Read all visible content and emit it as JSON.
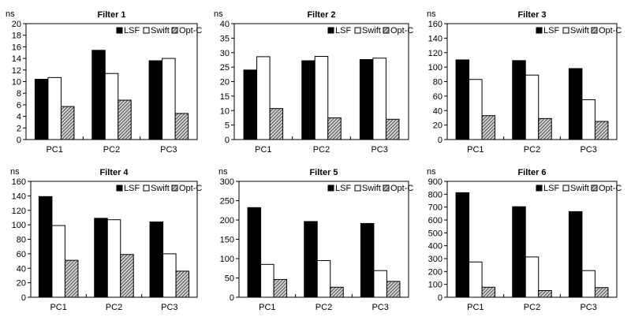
{
  "colors": {
    "LSF": "#000000",
    "Swift": "#ffffff",
    "Opt-C": "#888888"
  },
  "chart_data": [
    {
      "type": "bar",
      "title": "Filter 1",
      "ylabel": "ns",
      "xlabel": "",
      "categories": [
        "PC1",
        "PC2",
        "PC3"
      ],
      "ylim": [
        0,
        20
      ],
      "yticks": [
        0,
        2,
        4,
        6,
        8,
        10,
        12,
        14,
        16,
        18,
        20
      ],
      "legend": "top-right",
      "series": [
        {
          "name": "LSF",
          "values": [
            10.4,
            15.4,
            13.6
          ]
        },
        {
          "name": "Swift",
          "values": [
            10.7,
            11.4,
            14.0
          ]
        },
        {
          "name": "Opt-C",
          "values": [
            5.7,
            6.8,
            4.5
          ]
        }
      ]
    },
    {
      "type": "bar",
      "title": "Filter 2",
      "ylabel": "ns",
      "xlabel": "",
      "categories": [
        "PC1",
        "PC2",
        "PC3"
      ],
      "ylim": [
        0,
        40
      ],
      "yticks": [
        0,
        5,
        10,
        15,
        20,
        25,
        30,
        35,
        40
      ],
      "legend": "top-right",
      "series": [
        {
          "name": "LSF",
          "values": [
            24.0,
            27.2,
            27.6
          ]
        },
        {
          "name": "Swift",
          "values": [
            28.6,
            28.7,
            28.1
          ]
        },
        {
          "name": "Opt-C",
          "values": [
            10.7,
            7.5,
            7.0
          ]
        }
      ]
    },
    {
      "type": "bar",
      "title": "Filter 3",
      "ylabel": "ns",
      "xlabel": "",
      "categories": [
        "PC1",
        "PC2",
        "PC3"
      ],
      "ylim": [
        0,
        160
      ],
      "yticks": [
        0,
        20,
        40,
        60,
        80,
        100,
        120,
        140,
        160
      ],
      "legend": "top-right",
      "series": [
        {
          "name": "LSF",
          "values": [
            110,
            109,
            98
          ]
        },
        {
          "name": "Swift",
          "values": [
            83,
            89,
            55
          ]
        },
        {
          "name": "Opt-C",
          "values": [
            33,
            29,
            25
          ]
        }
      ]
    },
    {
      "type": "bar",
      "title": "Filter 4",
      "ylabel": "ns",
      "xlabel": "",
      "categories": [
        "PC1",
        "PC2",
        "PC3"
      ],
      "ylim": [
        0,
        160
      ],
      "yticks": [
        0,
        20,
        40,
        60,
        80,
        100,
        120,
        140,
        160
      ],
      "legend": "top-right",
      "series": [
        {
          "name": "LSF",
          "values": [
            139,
            109,
            104
          ]
        },
        {
          "name": "Swift",
          "values": [
            99,
            107,
            60
          ]
        },
        {
          "name": "Opt-C",
          "values": [
            51,
            59,
            36
          ]
        }
      ]
    },
    {
      "type": "bar",
      "title": "Filter 5",
      "ylabel": "ns",
      "xlabel": "",
      "categories": [
        "PC1",
        "PC2",
        "PC3"
      ],
      "ylim": [
        0,
        300
      ],
      "yticks": [
        0,
        50,
        100,
        150,
        200,
        250,
        300
      ],
      "legend": "top-right",
      "series": [
        {
          "name": "LSF",
          "values": [
            232,
            196,
            191
          ]
        },
        {
          "name": "Swift",
          "values": [
            85,
            95,
            69
          ]
        },
        {
          "name": "Opt-C",
          "values": [
            46,
            26,
            41
          ]
        }
      ]
    },
    {
      "type": "bar",
      "title": "Filter 6",
      "ylabel": "ns",
      "xlabel": "",
      "categories": [
        "PC1",
        "PC2",
        "PC3"
      ],
      "ylim": [
        0,
        900
      ],
      "yticks": [
        0,
        100,
        200,
        300,
        400,
        500,
        600,
        700,
        800,
        900
      ],
      "legend": "top-right",
      "series": [
        {
          "name": "LSF",
          "values": [
            812,
            703,
            665
          ]
        },
        {
          "name": "Swift",
          "values": [
            274,
            313,
            207
          ]
        },
        {
          "name": "Opt-C",
          "values": [
            78,
            52,
            75
          ]
        }
      ]
    }
  ]
}
